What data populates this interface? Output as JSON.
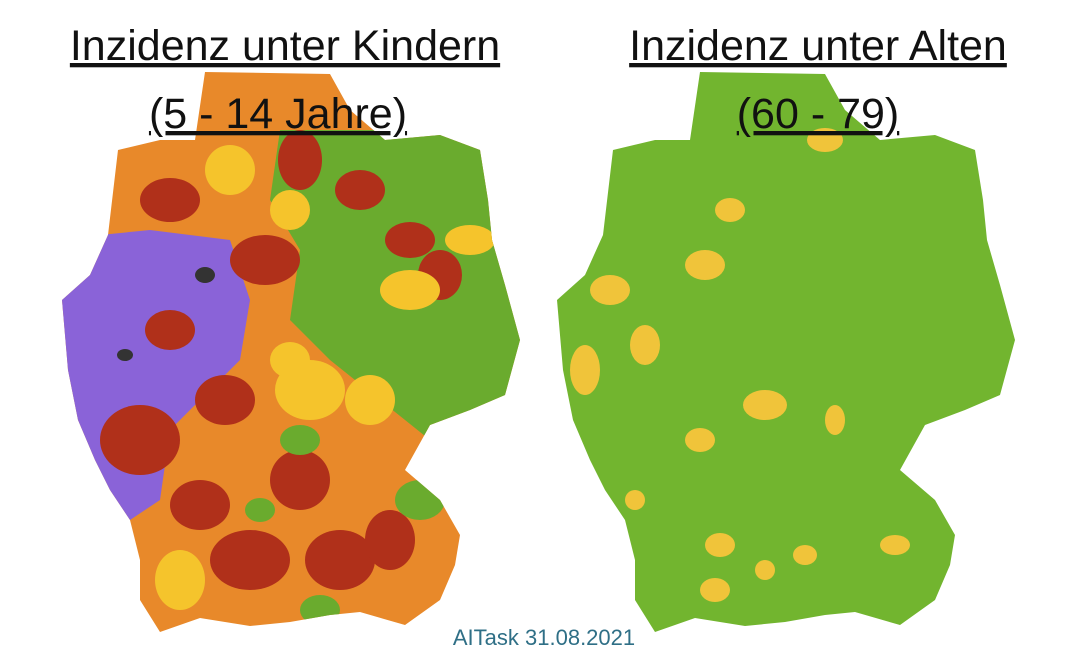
{
  "maps": [
    {
      "title": "Inzidenz unter Kindern",
      "subtitle": "(5 - 14 Jahre)"
    },
    {
      "title": "Inzidenz unter Alten",
      "subtitle": "(60 - 79)"
    }
  ],
  "credit": "AITask 31.08.2021"
}
